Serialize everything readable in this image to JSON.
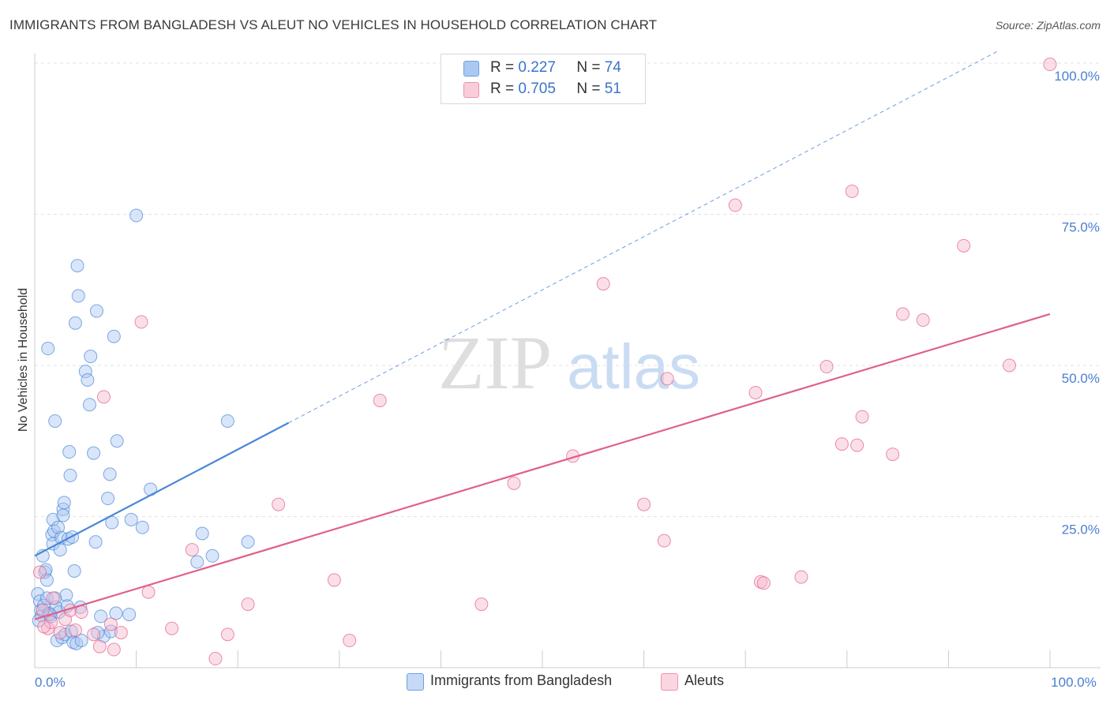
{
  "title": "IMMIGRANTS FROM BANGLADESH VS ALEUT NO VEHICLES IN HOUSEHOLD CORRELATION CHART",
  "source": "Source: ZipAtlas.com",
  "watermark": {
    "zip": "ZIP",
    "atlas": "atlas"
  },
  "legend_top": {
    "rows": [
      {
        "r_label": "R =",
        "r_value": "0.227",
        "n_label": "N =",
        "n_value": "74",
        "color": "#aac8f2"
      },
      {
        "r_label": "R =",
        "r_value": "0.705",
        "n_label": "N =",
        "n_value": "51",
        "color": "#f6b9cb"
      }
    ]
  },
  "legend_bottom": [
    {
      "label": "Immigrants from Bangladesh",
      "color": "#aac8f2"
    },
    {
      "label": "Aleuts",
      "color": "#f6b9cb"
    }
  ],
  "chart_data": {
    "type": "scatter",
    "xlabel": "",
    "ylabel": "No Vehicles in Household",
    "xlim": [
      0,
      100
    ],
    "ylim": [
      0,
      100
    ],
    "x_tick_labels": [
      {
        "value": 0,
        "label": "0.0%"
      },
      {
        "value": 100,
        "label": "100.0%"
      }
    ],
    "y_tick_labels": [
      {
        "value": 25,
        "label": "25.0%"
      },
      {
        "value": 50,
        "label": "50.0%"
      },
      {
        "value": 75,
        "label": "75.0%"
      },
      {
        "value": 100,
        "label": "100.0%"
      }
    ],
    "grid": true,
    "series": [
      {
        "name": "Immigrants from Bangladesh",
        "color": "#4a86d8",
        "fill": "#aac8f2",
        "trend": {
          "x0": 0,
          "y0": 18.5,
          "x1": 25,
          "y1": 40.5,
          "dashed_to_x": 95
        },
        "points": [
          [
            0.3,
            12.2
          ],
          [
            0.5,
            11.0
          ],
          [
            0.6,
            9.5
          ],
          [
            0.7,
            8.6
          ],
          [
            0.8,
            18.5
          ],
          [
            0.9,
            10.3
          ],
          [
            1.0,
            15.8
          ],
          [
            1.1,
            16.2
          ],
          [
            1.2,
            14.5
          ],
          [
            1.2,
            11.5
          ],
          [
            1.3,
            52.8
          ],
          [
            1.4,
            9.0
          ],
          [
            1.6,
            8.5
          ],
          [
            1.7,
            22.0
          ],
          [
            1.8,
            20.5
          ],
          [
            1.8,
            24.5
          ],
          [
            1.9,
            22.6
          ],
          [
            2.0,
            40.8
          ],
          [
            2.1,
            10.0
          ],
          [
            2.2,
            4.5
          ],
          [
            2.3,
            23.2
          ],
          [
            2.4,
            9.2
          ],
          [
            2.5,
            19.5
          ],
          [
            2.6,
            21.5
          ],
          [
            2.7,
            5.0
          ],
          [
            2.8,
            26.2
          ],
          [
            2.8,
            25.2
          ],
          [
            2.9,
            27.3
          ],
          [
            3.0,
            5.5
          ],
          [
            3.1,
            12.0
          ],
          [
            3.2,
            10.2
          ],
          [
            3.3,
            21.3
          ],
          [
            3.4,
            35.7
          ],
          [
            3.5,
            31.8
          ],
          [
            3.6,
            6.0
          ],
          [
            3.7,
            21.6
          ],
          [
            3.8,
            4.2
          ],
          [
            3.9,
            16.0
          ],
          [
            4.0,
            57.0
          ],
          [
            4.1,
            4.0
          ],
          [
            4.2,
            66.5
          ],
          [
            4.3,
            61.5
          ],
          [
            4.5,
            10.0
          ],
          [
            4.6,
            4.5
          ],
          [
            5.0,
            49.0
          ],
          [
            5.2,
            47.6
          ],
          [
            5.4,
            43.5
          ],
          [
            5.5,
            51.5
          ],
          [
            5.8,
            35.5
          ],
          [
            6.0,
            20.8
          ],
          [
            6.1,
            59.0
          ],
          [
            6.5,
            8.5
          ],
          [
            6.8,
            5.2
          ],
          [
            7.2,
            28.0
          ],
          [
            7.4,
            32.0
          ],
          [
            7.5,
            6.0
          ],
          [
            7.6,
            24.0
          ],
          [
            7.8,
            54.8
          ],
          [
            8.1,
            37.5
          ],
          [
            9.3,
            8.8
          ],
          [
            9.5,
            24.5
          ],
          [
            10.0,
            74.8
          ],
          [
            10.6,
            23.2
          ],
          [
            11.4,
            29.5
          ],
          [
            16.0,
            17.5
          ],
          [
            16.5,
            22.2
          ],
          [
            17.5,
            18.5
          ],
          [
            19.0,
            40.8
          ],
          [
            21.0,
            20.8
          ],
          [
            2.0,
            11.5
          ],
          [
            0.4,
            7.8
          ],
          [
            1.5,
            8.8
          ],
          [
            6.2,
            5.8
          ],
          [
            8.0,
            9.0
          ]
        ]
      },
      {
        "name": "Aleuts",
        "color": "#e0608a",
        "fill": "#f6b9cb",
        "trend": {
          "x0": 0,
          "y0": 8.0,
          "x1": 100,
          "y1": 58.5
        },
        "points": [
          [
            0.5,
            15.8
          ],
          [
            0.8,
            9.5
          ],
          [
            1.3,
            6.5
          ],
          [
            1.6,
            7.5
          ],
          [
            2.5,
            5.8
          ],
          [
            3.0,
            8.0
          ],
          [
            3.5,
            9.5
          ],
          [
            4.0,
            6.2
          ],
          [
            4.6,
            9.2
          ],
          [
            5.8,
            5.5
          ],
          [
            6.4,
            3.5
          ],
          [
            6.8,
            44.8
          ],
          [
            7.5,
            7.2
          ],
          [
            7.8,
            3.0
          ],
          [
            8.5,
            5.8
          ],
          [
            10.5,
            57.2
          ],
          [
            11.2,
            12.5
          ],
          [
            13.5,
            6.5
          ],
          [
            15.5,
            19.5
          ],
          [
            17.8,
            1.5
          ],
          [
            19.0,
            5.5
          ],
          [
            21.0,
            10.5
          ],
          [
            24.0,
            27.0
          ],
          [
            29.5,
            14.5
          ],
          [
            31.0,
            4.5
          ],
          [
            34.0,
            44.2
          ],
          [
            44.0,
            10.5
          ],
          [
            47.2,
            30.5
          ],
          [
            53.0,
            35.0
          ],
          [
            56.0,
            63.5
          ],
          [
            60.0,
            27.0
          ],
          [
            62.0,
            21.0
          ],
          [
            62.3,
            47.8
          ],
          [
            69.0,
            76.5
          ],
          [
            71.0,
            45.5
          ],
          [
            71.5,
            14.2
          ],
          [
            71.8,
            14.0
          ],
          [
            75.5,
            15.0
          ],
          [
            78.0,
            49.8
          ],
          [
            79.5,
            37.0
          ],
          [
            80.5,
            78.8
          ],
          [
            81.0,
            36.8
          ],
          [
            81.5,
            41.5
          ],
          [
            84.5,
            35.3
          ],
          [
            85.5,
            58.5
          ],
          [
            87.5,
            57.5
          ],
          [
            91.5,
            69.8
          ],
          [
            96.0,
            50.0
          ],
          [
            100.0,
            99.8
          ],
          [
            1.8,
            11.5
          ],
          [
            0.9,
            6.8
          ]
        ]
      }
    ]
  }
}
